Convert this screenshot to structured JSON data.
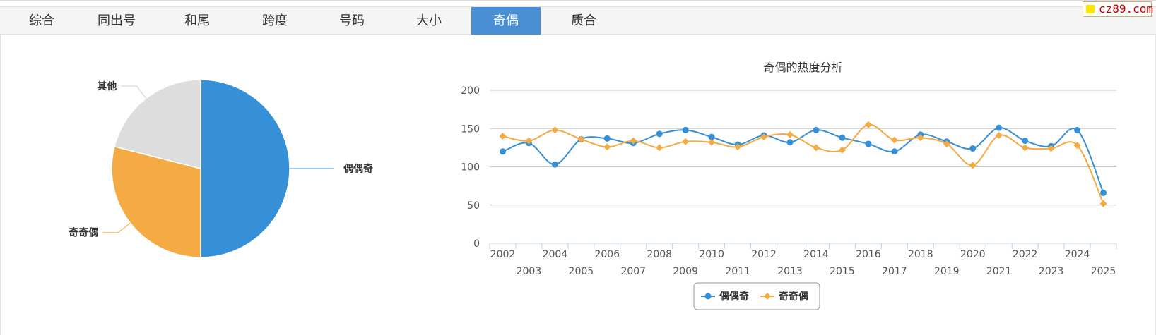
{
  "site_logo": "cz89.com",
  "tabs": [
    {
      "label": "综合",
      "active": false
    },
    {
      "label": "同出号",
      "active": false
    },
    {
      "label": "和尾",
      "active": false
    },
    {
      "label": "跨度",
      "active": false
    },
    {
      "label": "号码",
      "active": false
    },
    {
      "label": "大小",
      "active": false
    },
    {
      "label": "奇偶",
      "active": true
    },
    {
      "label": "质合",
      "active": false
    }
  ],
  "colors": {
    "accent": "#4a8fd3",
    "series1": "#3590d8",
    "series2": "#f5ab43",
    "other": "#dddddd"
  },
  "chart_data": [
    {
      "type": "pie",
      "slices": [
        {
          "label": "偶偶奇",
          "value": 50,
          "color": "#3590d8"
        },
        {
          "label": "奇奇偶",
          "value": 29,
          "color": "#f5ab43"
        },
        {
          "label": "其他",
          "value": 21,
          "color": "#dddddd"
        }
      ]
    },
    {
      "type": "line",
      "title": "奇偶的热度分析",
      "x": [
        "2002",
        "2003",
        "2004",
        "2005",
        "2006",
        "2007",
        "2008",
        "2009",
        "2010",
        "2011",
        "2012",
        "2013",
        "2014",
        "2015",
        "2016",
        "2017",
        "2018",
        "2019",
        "2020",
        "2021",
        "2022",
        "2023",
        "2024",
        "2025"
      ],
      "yticks": [
        0,
        50,
        100,
        150,
        200
      ],
      "ylim": [
        0,
        200
      ],
      "legend": "bottom-center",
      "series": [
        {
          "name": "偶偶奇",
          "color": "#3590d8",
          "marker": "circle",
          "values": [
            120,
            131,
            103,
            136,
            137,
            131,
            143,
            148,
            139,
            129,
            141,
            132,
            148,
            138,
            130,
            120,
            142,
            133,
            124,
            151,
            134,
            127,
            148,
            66
          ]
        },
        {
          "name": "奇奇偶",
          "color": "#f5ab43",
          "marker": "diamond",
          "values": [
            140,
            134,
            148,
            136,
            126,
            134,
            125,
            133,
            132,
            126,
            139,
            142,
            125,
            122,
            155,
            135,
            138,
            130,
            102,
            141,
            125,
            124,
            128,
            52
          ]
        }
      ]
    }
  ]
}
